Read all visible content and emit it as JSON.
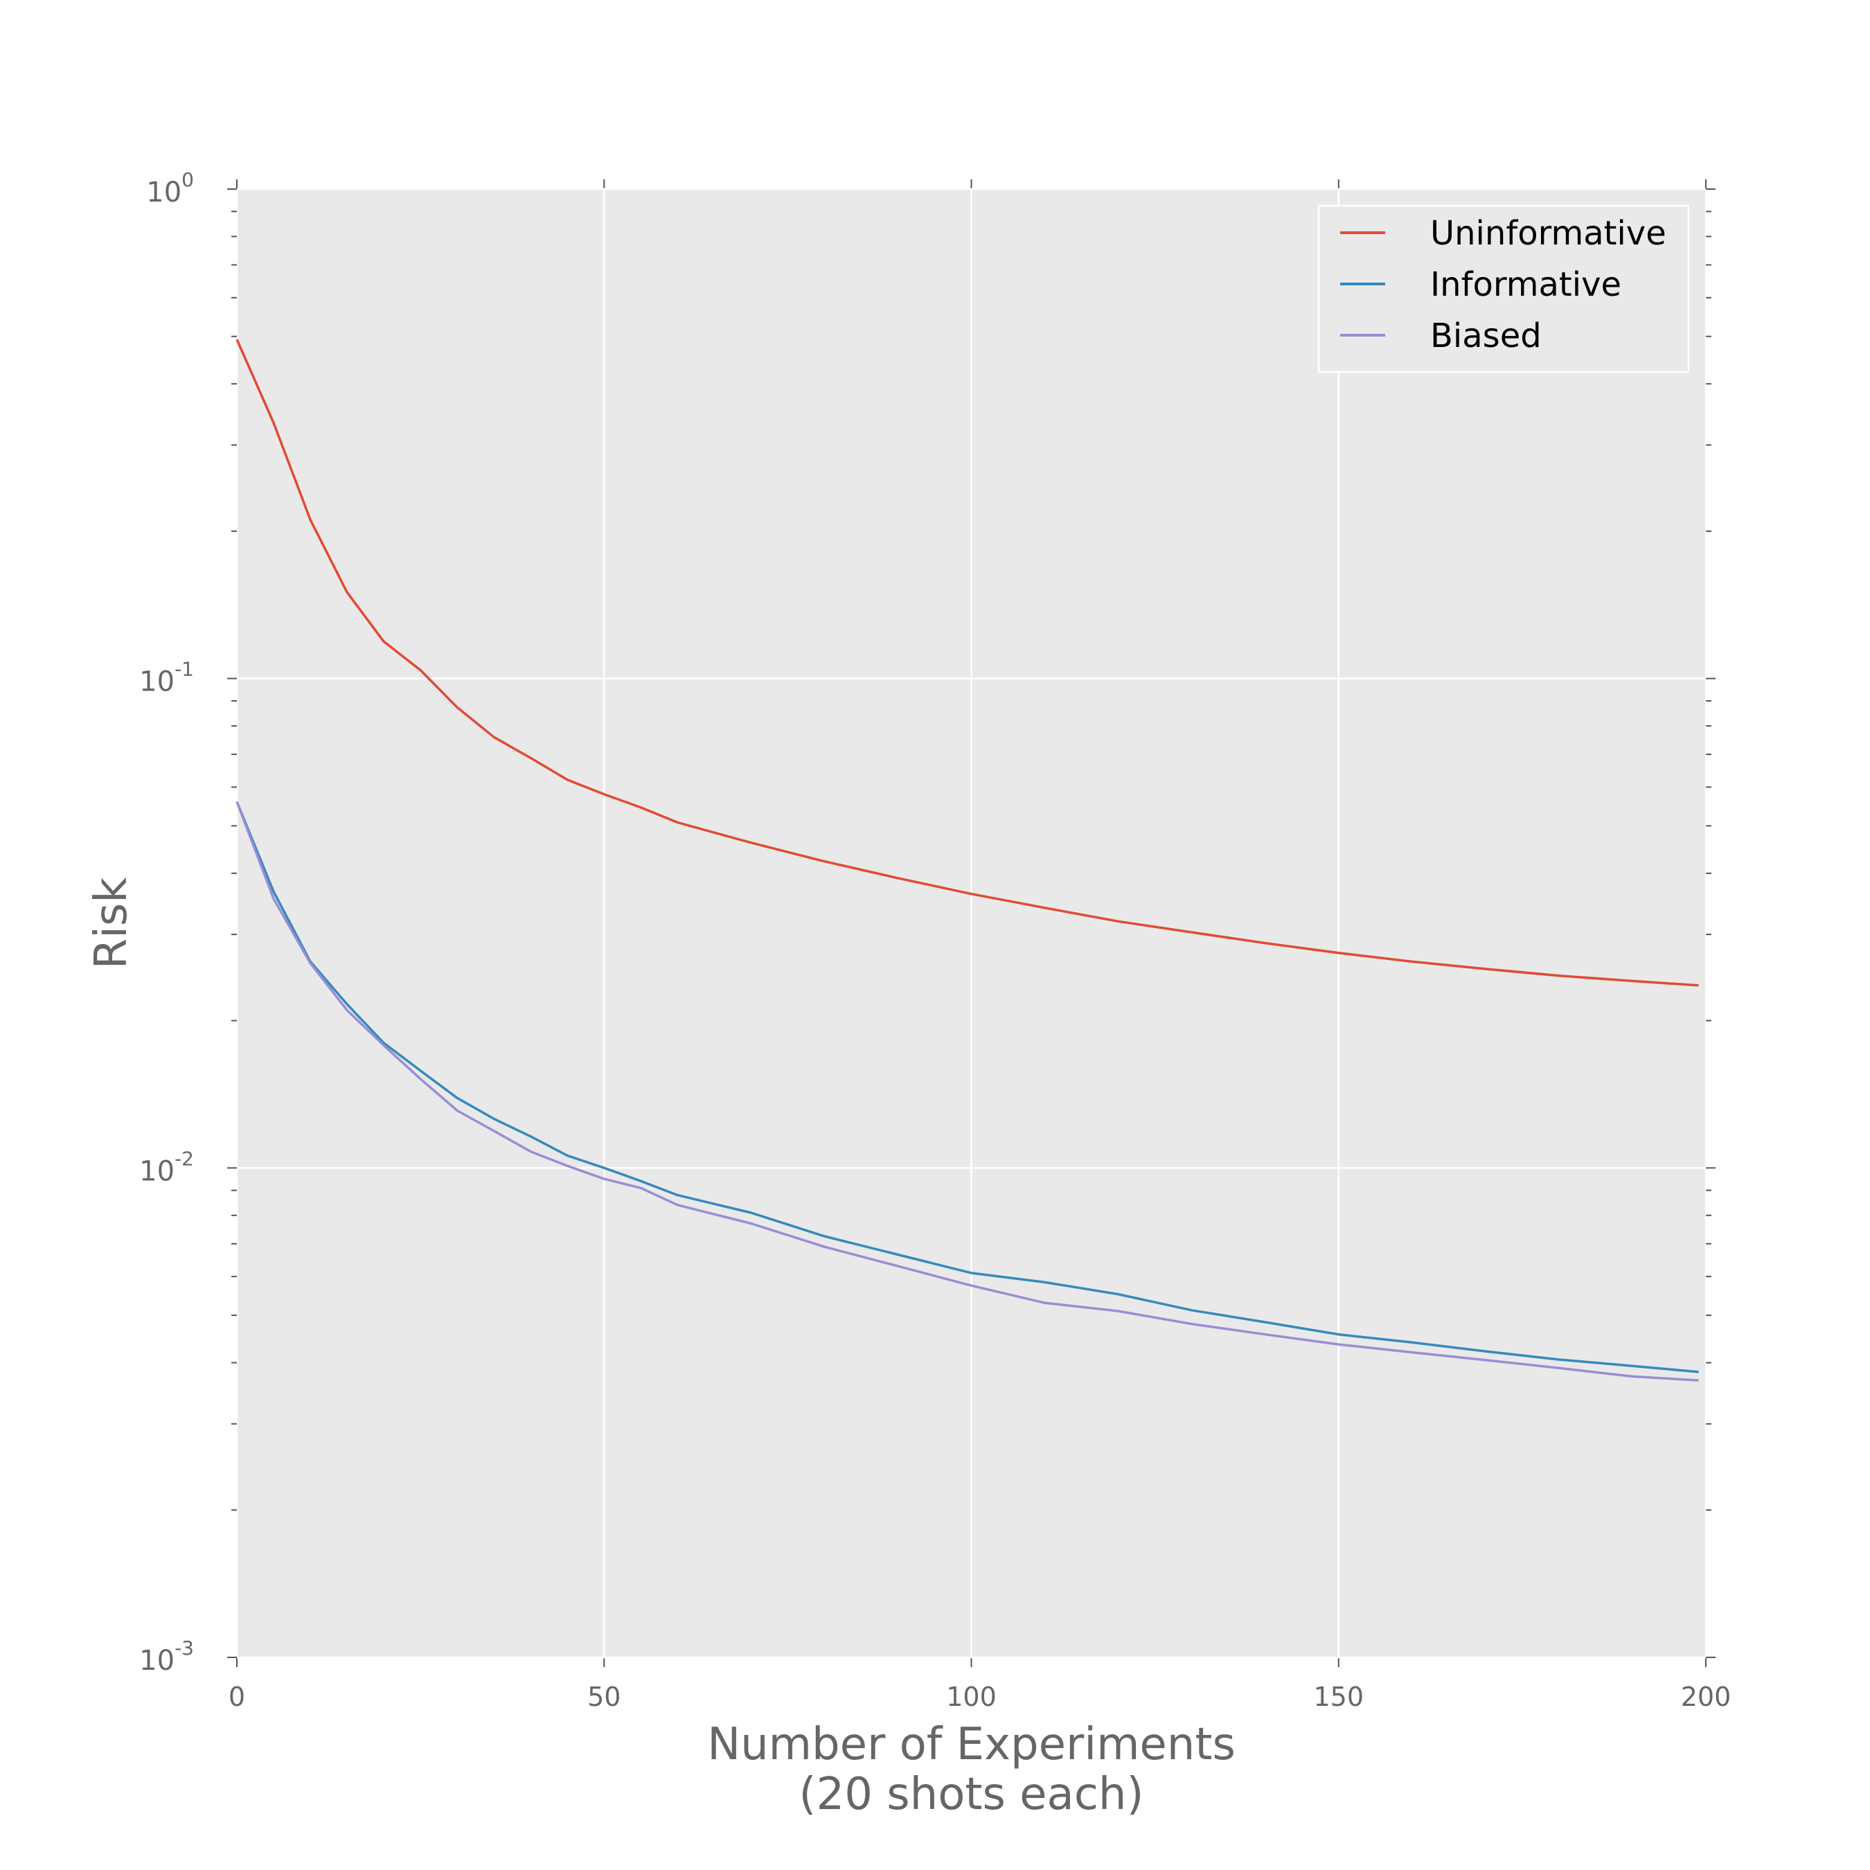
{
  "chart_data": {
    "type": "line",
    "xlabel": "Number of Experiments\n(20 shots each)",
    "ylabel": "Risk",
    "xlim": [
      0,
      200
    ],
    "ylim": [
      0.001,
      1
    ],
    "yscale": "log",
    "grid": true,
    "legend_position": "top-right",
    "xticks": [
      0,
      50,
      100,
      150,
      200
    ],
    "yticks": [
      {
        "base": "10",
        "exp": "-3",
        "value": 0.001
      },
      {
        "base": "10",
        "exp": "-2",
        "value": 0.01
      },
      {
        "base": "10",
        "exp": "-1",
        "value": 0.1
      },
      {
        "base": "10",
        "exp": "0",
        "value": 1
      }
    ],
    "x": [
      0,
      5,
      10,
      15,
      20,
      25,
      30,
      35,
      40,
      45,
      50,
      55,
      60,
      70,
      80,
      90,
      100,
      110,
      120,
      130,
      140,
      150,
      160,
      170,
      180,
      190,
      199
    ],
    "series": [
      {
        "name": "Uninformative",
        "color": "#E24A33",
        "values": [
          0.493,
          0.333,
          0.211,
          0.15,
          0.119,
          0.104,
          0.0873,
          0.0759,
          0.0688,
          0.0621,
          0.058,
          0.0545,
          0.0508,
          0.0462,
          0.0423,
          0.0391,
          0.0363,
          0.034,
          0.0319,
          0.0303,
          0.0288,
          0.0275,
          0.0264,
          0.0255,
          0.0247,
          0.0241,
          0.0236
        ]
      },
      {
        "name": "Informative",
        "color": "#348ABD",
        "values": [
          0.056,
          0.0367,
          0.0264,
          0.0216,
          0.018,
          0.0158,
          0.0139,
          0.0126,
          0.0116,
          0.0106,
          0.01,
          0.0094,
          0.0088,
          0.0081,
          0.00725,
          0.00665,
          0.0061,
          0.00584,
          0.00552,
          0.00512,
          0.00484,
          0.00457,
          0.0044,
          0.00422,
          0.00406,
          0.00394,
          0.00383
        ]
      },
      {
        "name": "Biased",
        "color": "#988ED5",
        "values": [
          0.056,
          0.0355,
          0.0262,
          0.021,
          0.0178,
          0.0152,
          0.0131,
          0.0119,
          0.0108,
          0.0101,
          0.0095,
          0.0091,
          0.0084,
          0.0077,
          0.0069,
          0.0063,
          0.00575,
          0.0053,
          0.0051,
          0.0048,
          0.00457,
          0.00436,
          0.0042,
          0.00405,
          0.0039,
          0.00375,
          0.00368
        ]
      }
    ]
  }
}
